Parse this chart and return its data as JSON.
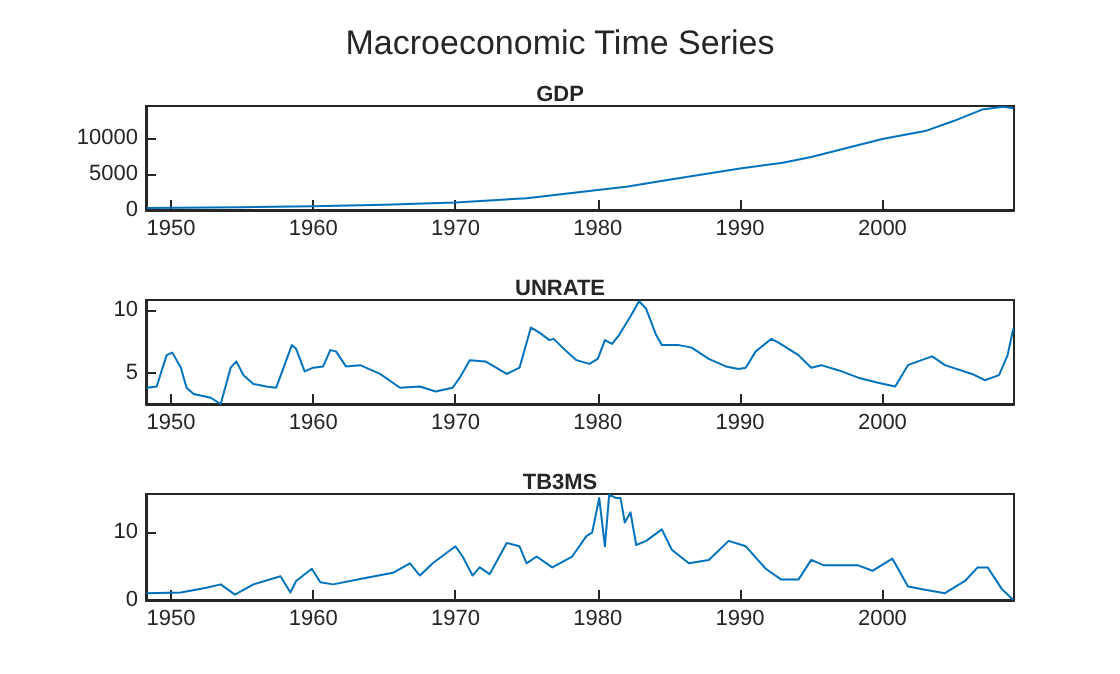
{
  "chart_data": [
    {
      "type": "line",
      "title": "Macroeconomic Time Series",
      "subtitle": "GDP",
      "xlim": [
        1948.25,
        2009.25
      ],
      "xticks": [
        1950,
        1960,
        1970,
        1980,
        1990,
        2000
      ],
      "ylim": [
        0,
        14500
      ],
      "yticks": [
        0,
        5000,
        10000
      ],
      "series": [
        {
          "color": "#0072bd",
          "x": [
            1948.3,
            1955,
            1960,
            1965,
            1970,
            1975,
            1980,
            1982,
            1985,
            1990,
            1993,
            1995,
            2000,
            2003,
            2005,
            2007,
            2008.5,
            2009.2
          ],
          "values": [
            270,
            400,
            530,
            720,
            1040,
            1640,
            2790,
            3250,
            4220,
            5800,
            6600,
            7400,
            9900,
            11000,
            12400,
            14000,
            14400,
            14200
          ]
        }
      ]
    },
    {
      "type": "line",
      "subtitle": "UNRATE",
      "xlim": [
        1948.25,
        2009.25
      ],
      "xticks": [
        1950,
        1960,
        1970,
        1980,
        1990,
        2000
      ],
      "ylim": [
        2.5,
        10.8
      ],
      "yticks": [
        5,
        10
      ],
      "series": [
        {
          "color": "#0072bd",
          "x": [
            1948.3,
            1949.0,
            1949.7,
            1950.1,
            1950.7,
            1951.1,
            1951.6,
            1952.8,
            1953.5,
            1954.2,
            1954.6,
            1955.1,
            1955.8,
            1956.7,
            1957.4,
            1958.5,
            1958.8,
            1959.4,
            1960.0,
            1960.7,
            1961.2,
            1961.6,
            1962.3,
            1963.3,
            1964.7,
            1966.1,
            1967.5,
            1968.6,
            1969.8,
            1970.3,
            1971.0,
            1972.1,
            1973.6,
            1974.5,
            1975.3,
            1975.9,
            1976.6,
            1976.9,
            1977.8,
            1978.5,
            1979.4,
            1980.0,
            1980.5,
            1981.0,
            1981.5,
            1982.3,
            1982.9,
            1983.4,
            1984.1,
            1984.5,
            1985.7,
            1986.6,
            1987.8,
            1989.0,
            1989.9,
            1990.4,
            1991.1,
            1992.2,
            1992.7,
            1994.1,
            1995.0,
            1995.7,
            1996.9,
            1998.3,
            1999.7,
            2000.9,
            2001.8,
            2002.5,
            2003.5,
            2004.4,
            2006.3,
            2007.2,
            2008.2,
            2008.8,
            2009.2
          ],
          "values": [
            3.8,
            3.9,
            6.4,
            6.6,
            5.4,
            3.8,
            3.3,
            3.0,
            2.5,
            5.4,
            5.9,
            4.8,
            4.1,
            3.9,
            3.8,
            7.2,
            6.9,
            5.1,
            5.4,
            5.5,
            6.8,
            6.7,
            5.5,
            5.6,
            4.9,
            3.8,
            3.9,
            3.5,
            3.8,
            4.6,
            6.0,
            5.9,
            4.9,
            5.4,
            8.6,
            8.2,
            7.6,
            7.7,
            6.7,
            6.0,
            5.7,
            6.1,
            7.6,
            7.3,
            8.0,
            9.5,
            10.7,
            10.1,
            8.0,
            7.2,
            7.2,
            7.0,
            6.1,
            5.5,
            5.3,
            5.4,
            6.7,
            7.7,
            7.4,
            6.4,
            5.4,
            5.6,
            5.2,
            4.6,
            4.2,
            3.9,
            5.6,
            5.9,
            6.3,
            5.6,
            4.9,
            4.4,
            4.8,
            6.4,
            8.5
          ]
        }
      ]
    },
    {
      "type": "line",
      "subtitle": "TB3MS",
      "xlim": [
        1948.25,
        2009.25
      ],
      "xticks": [
        1950,
        1960,
        1970,
        1980,
        1990,
        2000
      ],
      "ylim": [
        0,
        15.6
      ],
      "yticks": [
        0,
        10
      ],
      "series": [
        {
          "color": "#0072bd",
          "x": [
            1948.3,
            1950.7,
            1952.5,
            1953.5,
            1954.5,
            1955.8,
            1957.7,
            1958.4,
            1958.8,
            1959.9,
            1960.5,
            1961.4,
            1963.3,
            1965.6,
            1966.8,
            1967.5,
            1968.4,
            1970.0,
            1970.5,
            1971.2,
            1971.7,
            1972.4,
            1973.6,
            1974.5,
            1975.0,
            1975.7,
            1976.8,
            1978.2,
            1979.2,
            1979.6,
            1980.1,
            1980.5,
            1980.8,
            1981.3,
            1981.6,
            1981.9,
            1982.3,
            1982.7,
            1983.4,
            1984.5,
            1985.2,
            1986.4,
            1987.8,
            1989.2,
            1990.4,
            1991.8,
            1992.9,
            1994.1,
            1995.0,
            1995.9,
            1998.3,
            1999.3,
            2000.7,
            2001.8,
            2003.0,
            2004.4,
            2005.8,
            2006.7,
            2007.4,
            2008.4,
            2009.2
          ],
          "values": [
            1.0,
            1.1,
            1.8,
            2.3,
            0.8,
            2.3,
            3.5,
            1.1,
            2.8,
            4.6,
            2.6,
            2.3,
            3.1,
            4.0,
            5.4,
            3.6,
            5.4,
            7.9,
            6.4,
            3.6,
            4.8,
            3.8,
            8.4,
            7.9,
            5.4,
            6.4,
            4.8,
            6.4,
            9.4,
            9.9,
            15.0,
            7.9,
            15.5,
            15.0,
            15.0,
            11.4,
            12.9,
            8.1,
            8.7,
            10.4,
            7.4,
            5.4,
            5.9,
            8.7,
            7.9,
            4.6,
            3.0,
            3.0,
            5.9,
            5.1,
            5.1,
            4.3,
            6.1,
            2.0,
            1.5,
            1.0,
            2.8,
            4.8,
            4.8,
            1.6,
            0.0
          ]
        }
      ]
    }
  ]
}
